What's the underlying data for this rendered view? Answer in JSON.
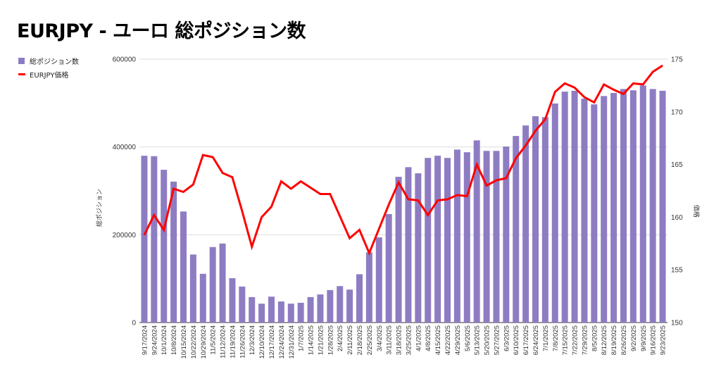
{
  "chart_data": {
    "type": "bar+line",
    "title": "EURJPY - ユーロ 総ポジション数",
    "xlabel": "",
    "ylabel": "総ポジション",
    "y2label": "価格",
    "ylim": [
      0,
      600000
    ],
    "y2lim": [
      150,
      175
    ],
    "yticks": [
      "0",
      "200000",
      "400000",
      "600000"
    ],
    "y2ticks": [
      "150",
      "155",
      "160",
      "165",
      "170",
      "175"
    ],
    "grid": true,
    "legend_position": "top-left",
    "colors": {
      "bars": "#8e7cc3",
      "line": "#ff0000"
    },
    "categories": [
      "9/17/2024",
      "9/24/2024",
      "10/1/2024",
      "10/8/2024",
      "10/15/2024",
      "10/22/2024",
      "10/29/2024",
      "11/5/2024",
      "11/12/2024",
      "11/19/2024",
      "11/26/2024",
      "12/3/2024",
      "12/10/2024",
      "12/17/2024",
      "12/24/2024",
      "12/31/2024",
      "1/7/2025",
      "1/14/2025",
      "1/21/2025",
      "1/28/2025",
      "2/4/2025",
      "2/11/2025",
      "2/18/2025",
      "2/25/2025",
      "3/4/2025",
      "3/11/2025",
      "3/18/2025",
      "3/25/2025",
      "4/1/2025",
      "4/8/2025",
      "4/15/2025",
      "4/22/2025",
      "4/29/2025",
      "5/6/2025",
      "5/13/2025",
      "5/20/2025",
      "5/27/2025",
      "6/3/2025",
      "6/10/2025",
      "6/17/2025",
      "6/24/2025",
      "7/1/2025",
      "7/8/2025",
      "7/15/2025",
      "7/22/2025",
      "7/29/2025",
      "8/5/2025",
      "8/12/2025",
      "8/19/2025",
      "8/26/2025",
      "9/2/2025",
      "9/9/2025",
      "9/16/2025",
      "9/23/2025"
    ],
    "series": [
      {
        "name": "総ポジション数",
        "type": "bar",
        "axis": "left",
        "values": [
          380000,
          379000,
          348000,
          321000,
          253000,
          155000,
          111000,
          172000,
          180000,
          101000,
          82000,
          58000,
          43000,
          59000,
          48000,
          43000,
          45000,
          58000,
          64000,
          74000,
          83000,
          75000,
          110000,
          160000,
          194000,
          247000,
          332000,
          354000,
          340000,
          375000,
          380000,
          375000,
          394000,
          388000,
          415000,
          391000,
          391000,
          401000,
          425000,
          449000,
          470000,
          468000,
          499000,
          526000,
          528000,
          510000,
          497000,
          516000,
          523000,
          532000,
          529000,
          540000,
          532000,
          528000
        ]
      },
      {
        "name": "EURJPY価格",
        "type": "line",
        "axis": "right",
        "values": [
          158.3,
          160.2,
          158.8,
          162.7,
          162.4,
          163.1,
          165.9,
          165.7,
          164.2,
          163.8,
          160.6,
          157.2,
          160.0,
          161.0,
          163.4,
          162.7,
          163.4,
          162.8,
          162.2,
          162.2,
          160.1,
          158.0,
          158.8,
          156.6,
          158.9,
          161.2,
          163.3,
          161.7,
          161.6,
          160.2,
          161.6,
          161.7,
          162.1,
          162.0,
          165.0,
          163.0,
          163.5,
          163.7,
          165.6,
          166.8,
          168.2,
          169.3,
          171.9,
          172.7,
          172.3,
          171.4,
          170.9,
          172.6,
          172.1,
          171.7,
          172.7,
          172.6,
          173.8,
          174.4
        ]
      }
    ]
  }
}
